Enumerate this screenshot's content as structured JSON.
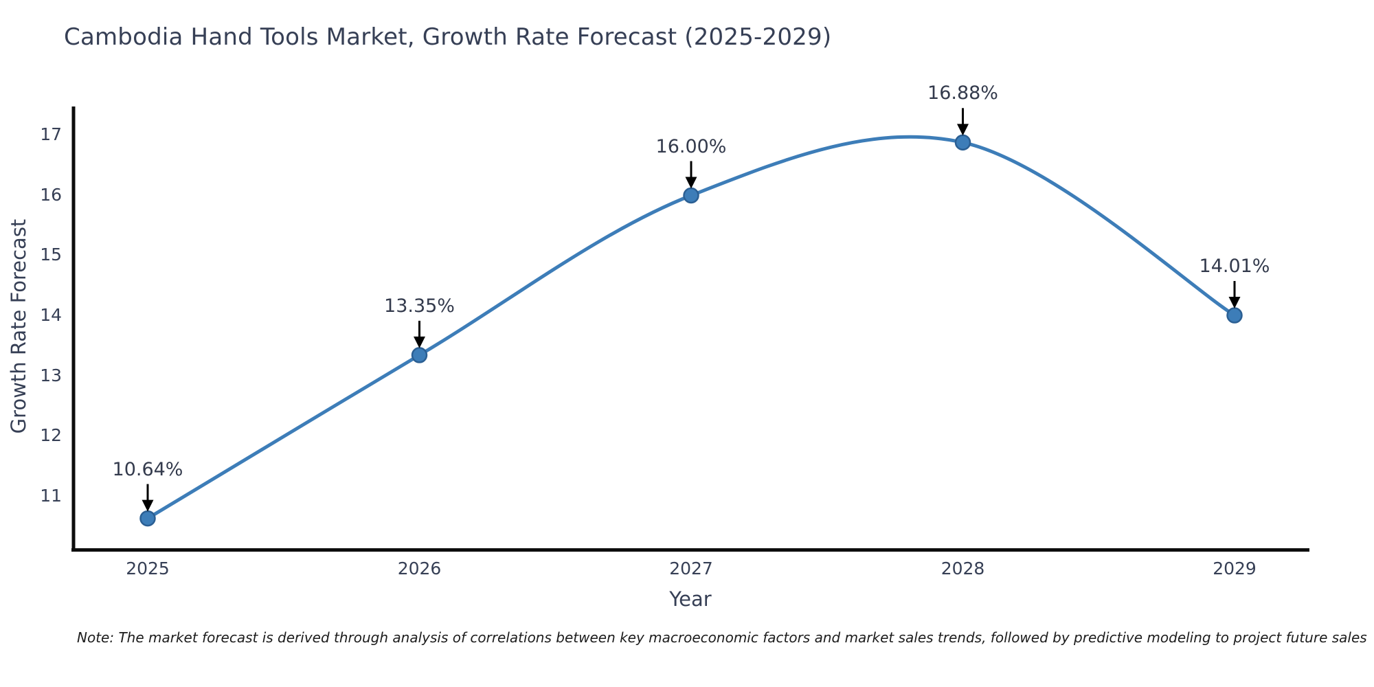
{
  "title": "Cambodia Hand Tools Market, Growth Rate Forecast (2025-2029)",
  "note": "Note: The market forecast is derived through analysis of correlations between key macroeconomic factors and market sales trends, followed by predictive modeling to project future sales",
  "chart_data": {
    "type": "line",
    "x": [
      2025,
      2026,
      2027,
      2028,
      2029
    ],
    "values": [
      10.64,
      13.35,
      16.0,
      16.88,
      14.01
    ],
    "point_labels": [
      "10.64%",
      "13.35%",
      "16.00%",
      "16.88%",
      "14.01%"
    ],
    "title": "Cambodia Hand Tools Market, Growth Rate Forecast (2025-2029)",
    "xlabel": "Year",
    "ylabel": "Growth Rate Forecast",
    "xticklabels": [
      "2025",
      "2026",
      "2027",
      "2028",
      "2029"
    ],
    "yticks": [
      11,
      12,
      13,
      14,
      15,
      16,
      17
    ],
    "ylim": [
      10.12,
      17.45
    ],
    "grid": false,
    "legend": "none",
    "line_style": "smooth-spline",
    "marker": "circle",
    "annotation_style": "value-label-with-down-arrow",
    "colors": {
      "line": "#3d7db8",
      "marker_fill": "#3d7db8",
      "marker_edge": "#2b5f93",
      "arrow": "#000000",
      "axis": "#0d0d0d",
      "text": "#363f55"
    }
  }
}
